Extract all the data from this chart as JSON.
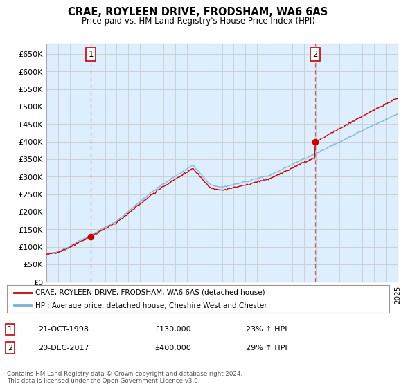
{
  "title": "CRAE, ROYLEEN DRIVE, FRODSHAM, WA6 6AS",
  "subtitle": "Price paid vs. HM Land Registry's House Price Index (HPI)",
  "ylabel_ticks": [
    "£0",
    "£50K",
    "£100K",
    "£150K",
    "£200K",
    "£250K",
    "£300K",
    "£350K",
    "£400K",
    "£450K",
    "£500K",
    "£550K",
    "£600K",
    "£650K"
  ],
  "ytick_values": [
    0,
    50000,
    100000,
    150000,
    200000,
    250000,
    300000,
    350000,
    400000,
    450000,
    500000,
    550000,
    600000,
    650000
  ],
  "ylim": [
    0,
    680000
  ],
  "xlim_start": 1995,
  "xlim_end": 2025,
  "red_line_color": "#cc0000",
  "blue_line_color": "#7ab0d4",
  "chart_bg_color": "#ddeeff",
  "fig_bg_color": "#ffffff",
  "grid_color": "#cccccc",
  "point1_year": 1998.8,
  "point1_value": 130000,
  "point2_year": 2017.95,
  "point2_value": 400000,
  "vline1_year": 1998.8,
  "vline2_year": 2017.95,
  "legend_red": "CRAE, ROYLEEN DRIVE, FRODSHAM, WA6 6AS (detached house)",
  "legend_blue": "HPI: Average price, detached house, Cheshire West and Chester",
  "annotation1_label": "1",
  "annotation1_date": "21-OCT-1998",
  "annotation1_price": "£130,000",
  "annotation1_hpi": "23% ↑ HPI",
  "annotation2_label": "2",
  "annotation2_date": "20-DEC-2017",
  "annotation2_price": "£400,000",
  "annotation2_hpi": "29% ↑ HPI",
  "footer": "Contains HM Land Registry data © Crown copyright and database right 2024.\nThis data is licensed under the Open Government Licence v3.0.",
  "vline_color": "#cc0000",
  "vline_alpha": 0.6
}
